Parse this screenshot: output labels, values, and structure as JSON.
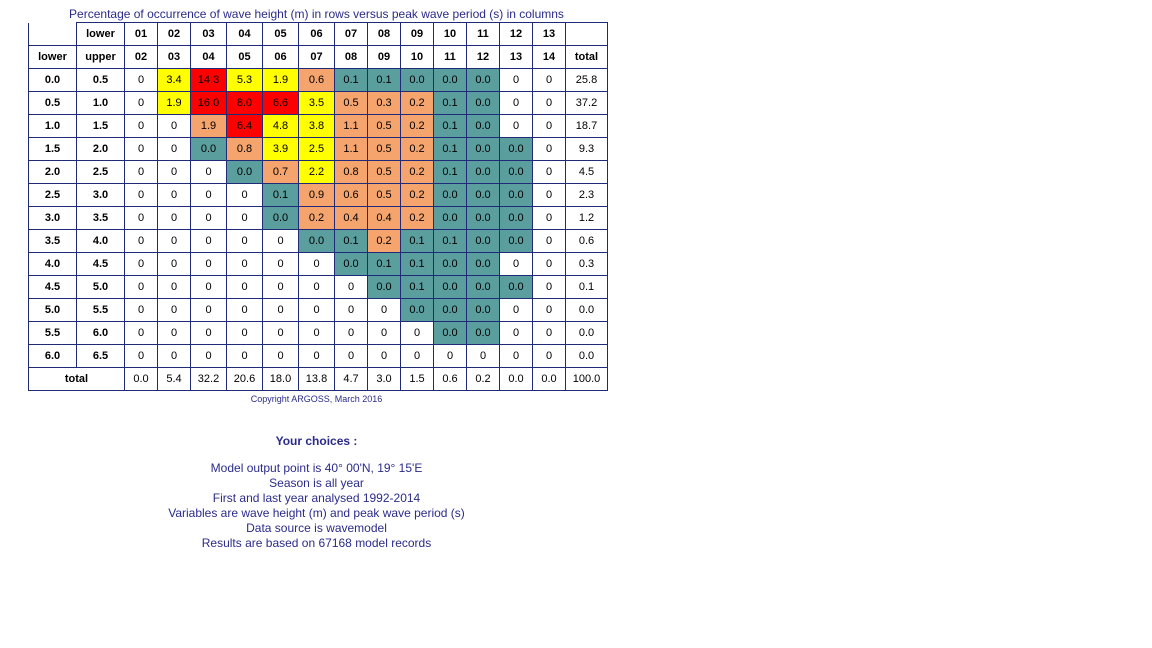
{
  "title": "Percentage of occurrence of wave height (m) in rows versus peak wave period (s) in columns",
  "colors": {
    "text": "#2b2b8a",
    "border": "#1f2a78",
    "level_teal": "#5b9e9e",
    "level_orange": "#f4a46c",
    "level_yellow": "#ffff00",
    "level_red": "#ff0000"
  },
  "chart_data": {
    "type": "table",
    "title": "Percentage of occurrence of wave height (m) in rows versus peak wave period (s) in columns",
    "period_lower_header": "lower",
    "period_upper_header": "upper",
    "height_lower_header": "lower",
    "total_header": "total",
    "total_row_label": "total",
    "period_lower": [
      "01",
      "02",
      "03",
      "04",
      "05",
      "06",
      "07",
      "08",
      "09",
      "10",
      "11",
      "12",
      "13"
    ],
    "period_upper": [
      "02",
      "03",
      "04",
      "05",
      "06",
      "07",
      "08",
      "09",
      "10",
      "11",
      "12",
      "13",
      "14"
    ],
    "rows": [
      {
        "lower": "0.0",
        "upper": "0.5",
        "values": [
          "0",
          "3.4",
          "14.3",
          "5.3",
          "1.9",
          "0.6",
          "0.1",
          "0.1",
          "0.0",
          "0.0",
          "0.0",
          "0",
          "0"
        ],
        "levels": [
          0,
          3,
          4,
          3,
          3,
          2,
          1,
          1,
          1,
          1,
          1,
          0,
          0
        ],
        "total": "25.8"
      },
      {
        "lower": "0.5",
        "upper": "1.0",
        "values": [
          "0",
          "1.9",
          "16.0",
          "8.0",
          "6.6",
          "3.5",
          "0.5",
          "0.3",
          "0.2",
          "0.1",
          "0.0",
          "0",
          "0"
        ],
        "levels": [
          0,
          3,
          4,
          4,
          4,
          3,
          2,
          2,
          2,
          1,
          1,
          0,
          0
        ],
        "total": "37.2"
      },
      {
        "lower": "1.0",
        "upper": "1.5",
        "values": [
          "0",
          "0",
          "1.9",
          "6.4",
          "4.8",
          "3.8",
          "1.1",
          "0.5",
          "0.2",
          "0.1",
          "0.0",
          "0",
          "0"
        ],
        "levels": [
          0,
          0,
          2,
          4,
          3,
          3,
          2,
          2,
          2,
          1,
          1,
          0,
          0
        ],
        "total": "18.7"
      },
      {
        "lower": "1.5",
        "upper": "2.0",
        "values": [
          "0",
          "0",
          "0.0",
          "0.8",
          "3.9",
          "2.5",
          "1.1",
          "0.5",
          "0.2",
          "0.1",
          "0.0",
          "0.0",
          "0"
        ],
        "levels": [
          0,
          0,
          1,
          2,
          3,
          3,
          2,
          2,
          2,
          1,
          1,
          1,
          0
        ],
        "total": "9.3"
      },
      {
        "lower": "2.0",
        "upper": "2.5",
        "values": [
          "0",
          "0",
          "0",
          "0.0",
          "0.7",
          "2.2",
          "0.8",
          "0.5",
          "0.2",
          "0.1",
          "0.0",
          "0.0",
          "0"
        ],
        "levels": [
          0,
          0,
          0,
          1,
          2,
          3,
          2,
          2,
          2,
          1,
          1,
          1,
          0
        ],
        "total": "4.5"
      },
      {
        "lower": "2.5",
        "upper": "3.0",
        "values": [
          "0",
          "0",
          "0",
          "0",
          "0.1",
          "0.9",
          "0.6",
          "0.5",
          "0.2",
          "0.0",
          "0.0",
          "0.0",
          "0"
        ],
        "levels": [
          0,
          0,
          0,
          0,
          1,
          2,
          2,
          2,
          2,
          1,
          1,
          1,
          0
        ],
        "total": "2.3"
      },
      {
        "lower": "3.0",
        "upper": "3.5",
        "values": [
          "0",
          "0",
          "0",
          "0",
          "0.0",
          "0.2",
          "0.4",
          "0.4",
          "0.2",
          "0.0",
          "0.0",
          "0.0",
          "0"
        ],
        "levels": [
          0,
          0,
          0,
          0,
          1,
          2,
          2,
          2,
          2,
          1,
          1,
          1,
          0
        ],
        "total": "1.2"
      },
      {
        "lower": "3.5",
        "upper": "4.0",
        "values": [
          "0",
          "0",
          "0",
          "0",
          "0",
          "0.0",
          "0.1",
          "0.2",
          "0.1",
          "0.1",
          "0.0",
          "0.0",
          "0"
        ],
        "levels": [
          0,
          0,
          0,
          0,
          0,
          1,
          1,
          2,
          1,
          1,
          1,
          1,
          0
        ],
        "total": "0.6"
      },
      {
        "lower": "4.0",
        "upper": "4.5",
        "values": [
          "0",
          "0",
          "0",
          "0",
          "0",
          "0",
          "0.0",
          "0.1",
          "0.1",
          "0.0",
          "0.0",
          "0",
          "0"
        ],
        "levels": [
          0,
          0,
          0,
          0,
          0,
          0,
          1,
          1,
          1,
          1,
          1,
          0,
          0
        ],
        "total": "0.3"
      },
      {
        "lower": "4.5",
        "upper": "5.0",
        "values": [
          "0",
          "0",
          "0",
          "0",
          "0",
          "0",
          "0",
          "0.0",
          "0.1",
          "0.0",
          "0.0",
          "0.0",
          "0"
        ],
        "levels": [
          0,
          0,
          0,
          0,
          0,
          0,
          0,
          1,
          1,
          1,
          1,
          1,
          0
        ],
        "total": "0.1"
      },
      {
        "lower": "5.0",
        "upper": "5.5",
        "values": [
          "0",
          "0",
          "0",
          "0",
          "0",
          "0",
          "0",
          "0",
          "0.0",
          "0.0",
          "0.0",
          "0",
          "0"
        ],
        "levels": [
          0,
          0,
          0,
          0,
          0,
          0,
          0,
          0,
          1,
          1,
          1,
          0,
          0
        ],
        "total": "0.0"
      },
      {
        "lower": "5.5",
        "upper": "6.0",
        "values": [
          "0",
          "0",
          "0",
          "0",
          "0",
          "0",
          "0",
          "0",
          "0",
          "0.0",
          "0.0",
          "0",
          "0"
        ],
        "levels": [
          0,
          0,
          0,
          0,
          0,
          0,
          0,
          0,
          0,
          1,
          1,
          0,
          0
        ],
        "total": "0.0"
      },
      {
        "lower": "6.0",
        "upper": "6.5",
        "values": [
          "0",
          "0",
          "0",
          "0",
          "0",
          "0",
          "0",
          "0",
          "0",
          "0",
          "0",
          "0",
          "0"
        ],
        "levels": [
          0,
          0,
          0,
          0,
          0,
          0,
          0,
          0,
          0,
          0,
          0,
          0,
          0
        ],
        "total": "0.0"
      }
    ],
    "column_totals": [
      "0.0",
      "5.4",
      "32.2",
      "20.6",
      "18.0",
      "13.8",
      "4.7",
      "3.0",
      "1.5",
      "0.6",
      "0.2",
      "0.0",
      "0.0"
    ],
    "grand_total": "100.0"
  },
  "copyright": "Copyright ARGOSS, March 2016",
  "choices": {
    "title": "Your choices :",
    "lines": [
      "Model output point is 40° 00'N, 19° 15'E",
      "Season is all year",
      "First and last year analysed 1992-2014",
      "Variables are wave height (m) and peak wave period (s)",
      "Data source is wavemodel",
      "Results are based on 67168 model records"
    ]
  }
}
